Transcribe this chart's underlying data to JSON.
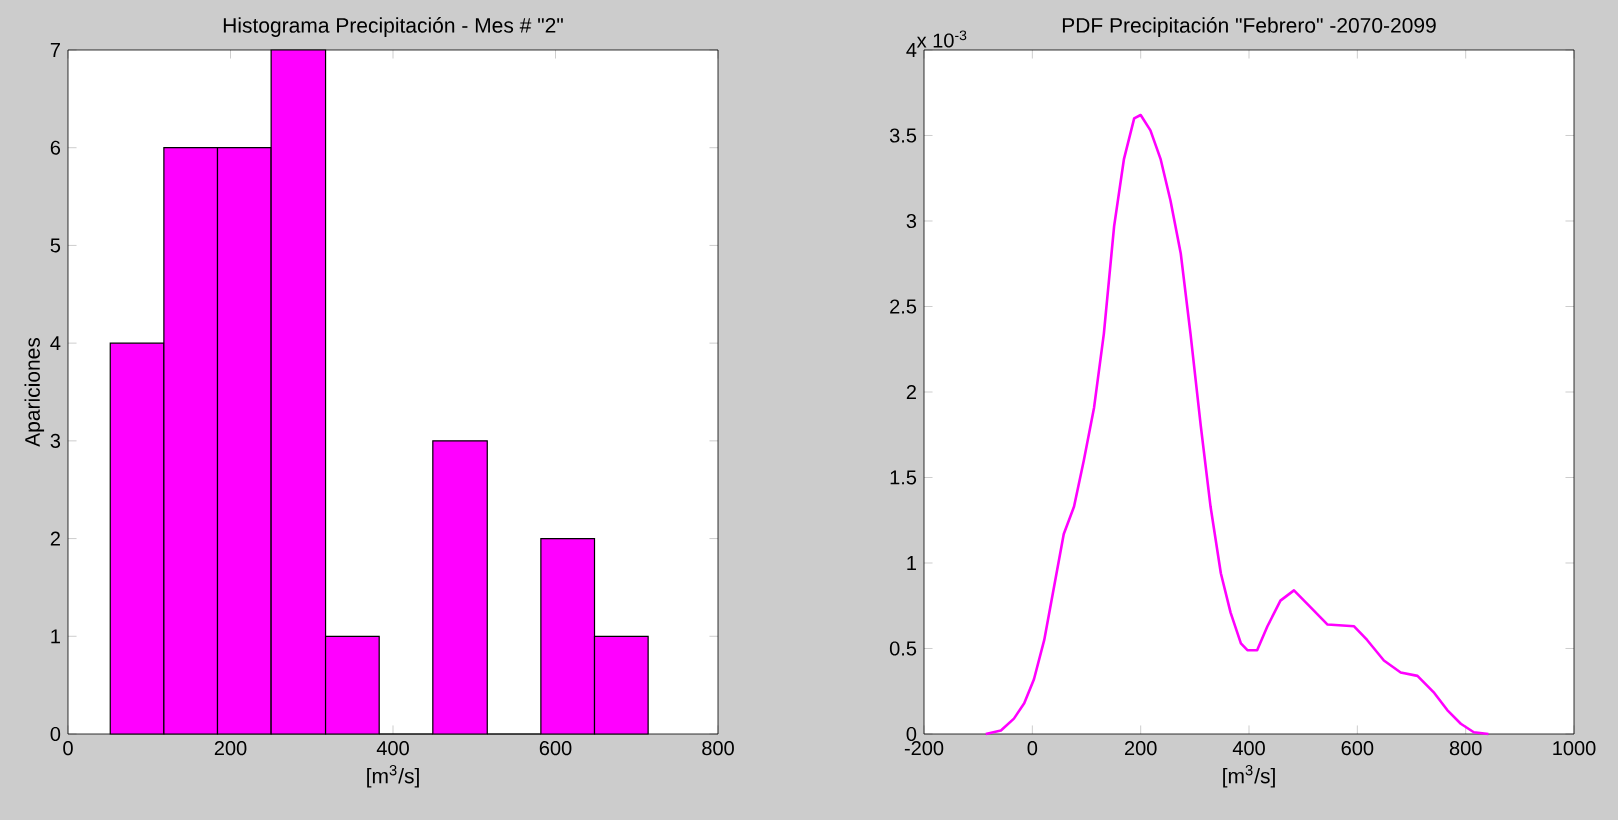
{
  "chart_data": [
    {
      "type": "histogram",
      "title": "Histograma Precipitación - Mes # \"2\"",
      "xlabel": "[m$^{3}$/s]",
      "ylabel": "Apariciones",
      "bins": [
        52,
        118,
        184,
        250,
        317,
        383,
        449,
        516,
        582,
        648,
        714
      ],
      "values": [
        4,
        6,
        6,
        7,
        1,
        0,
        3,
        0,
        2,
        1
      ],
      "color": "#ff00ff",
      "xlim": [
        0,
        800
      ],
      "ylim": [
        0,
        7
      ],
      "xticks": [
        0,
        200,
        400,
        600,
        800
      ],
      "yticks": [
        0,
        1,
        2,
        3,
        4,
        5,
        6,
        7
      ]
    },
    {
      "type": "line",
      "title": "PDF Precipitación \"Febrero\" -2070-2099",
      "xlabel": "[m$^{3}$/s]",
      "annotations": [
        "x 10$^{-3}$"
      ],
      "x": [
        -86,
        -58,
        -34,
        -15,
        3,
        22,
        40,
        58,
        77,
        95,
        114,
        132,
        151,
        169,
        188,
        200,
        218,
        237,
        255,
        274,
        292,
        311,
        329,
        348,
        366,
        385,
        397,
        415,
        434,
        458,
        483,
        508,
        545,
        594,
        618,
        649,
        680,
        711,
        742,
        766,
        791,
        815,
        842
      ],
      "values": [
        0,
        0.02,
        0.09,
        0.18,
        0.32,
        0.55,
        0.86,
        1.17,
        1.33,
        1.6,
        1.91,
        2.34,
        2.97,
        3.36,
        3.6,
        3.62,
        3.53,
        3.36,
        3.12,
        2.81,
        2.34,
        1.8,
        1.33,
        0.94,
        0.71,
        0.53,
        0.49,
        0.49,
        0.63,
        0.78,
        0.84,
        0.76,
        0.64,
        0.63,
        0.55,
        0.43,
        0.36,
        0.34,
        0.24,
        0.14,
        0.06,
        0.01,
        0
      ],
      "color": "#ff00ff",
      "xlim": [
        -200,
        1000
      ],
      "ylim": [
        0,
        4
      ],
      "xticks": [
        -200,
        0,
        200,
        400,
        600,
        800,
        1000
      ],
      "yticks": [
        0,
        0.5,
        1,
        1.5,
        2,
        2.5,
        3,
        3.5,
        4
      ]
    }
  ]
}
